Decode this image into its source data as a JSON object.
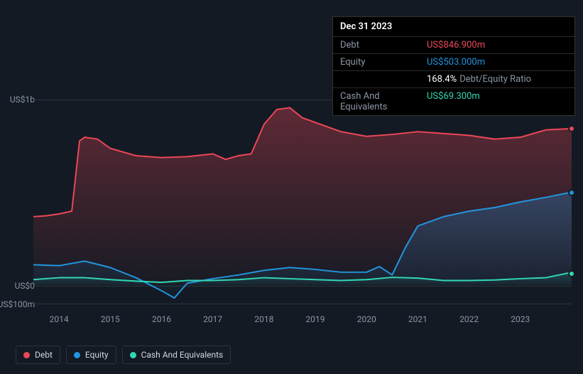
{
  "chart": {
    "type": "area",
    "background_color": "#131a23",
    "grid_color": "#2a3440",
    "axis_label_color": "#8b97a6",
    "axis_fontsize": 12,
    "x_domain": [
      2013.5,
      2024.0
    ],
    "y_domain": [
      -100,
      1000
    ],
    "y_ticks": [
      {
        "v": 1000,
        "label": "US$1b"
      },
      {
        "v": 0,
        "label": "US$0"
      },
      {
        "v": -100,
        "label": "-US$100m"
      }
    ],
    "x_ticks": [
      2014,
      2015,
      2016,
      2017,
      2018,
      2019,
      2020,
      2021,
      2022,
      2023
    ],
    "series": [
      {
        "key": "debt",
        "label": "Debt",
        "color": "#eb4758",
        "fill_top": "rgba(235,71,88,0.35)",
        "fill_bottom": "rgba(235,71,88,0.02)",
        "x": [
          2013.5,
          2013.75,
          2014.0,
          2014.25,
          2014.4,
          2014.5,
          2014.75,
          2015.0,
          2015.5,
          2016.0,
          2016.5,
          2017.0,
          2017.25,
          2017.5,
          2017.75,
          2018.0,
          2018.25,
          2018.5,
          2018.75,
          2019.0,
          2019.5,
          2020.0,
          2020.5,
          2021.0,
          2021.5,
          2022.0,
          2022.5,
          2023.0,
          2023.5,
          2024.0
        ],
        "y": [
          370,
          375,
          385,
          400,
          780,
          800,
          790,
          740,
          700,
          690,
          695,
          710,
          680,
          700,
          710,
          870,
          950,
          960,
          905,
          880,
          830,
          805,
          815,
          830,
          820,
          810,
          790,
          800,
          840,
          846.9
        ]
      },
      {
        "key": "equity",
        "label": "Equity",
        "color": "#2394df",
        "fill_top": "rgba(35,148,223,0.30)",
        "fill_bottom": "rgba(35,148,223,0.02)",
        "x": [
          2013.5,
          2014.0,
          2014.5,
          2015.0,
          2015.5,
          2016.0,
          2016.25,
          2016.5,
          2017.0,
          2017.5,
          2018.0,
          2018.5,
          2019.0,
          2019.5,
          2020.0,
          2020.25,
          2020.5,
          2020.75,
          2021.0,
          2021.5,
          2022.0,
          2022.5,
          2023.0,
          2023.5,
          2024.0
        ],
        "y": [
          110,
          105,
          130,
          95,
          40,
          -30,
          -70,
          10,
          35,
          55,
          80,
          95,
          85,
          70,
          70,
          100,
          55,
          200,
          320,
          370,
          400,
          420,
          450,
          475,
          503
        ]
      },
      {
        "key": "cash",
        "label": "Cash And Equivalents",
        "color": "#32d7b4",
        "fill_top": "rgba(50,215,180,0.18)",
        "fill_bottom": "rgba(50,215,180,0.01)",
        "x": [
          2013.5,
          2014.0,
          2014.5,
          2015.0,
          2015.5,
          2016.0,
          2016.5,
          2017.0,
          2017.5,
          2018.0,
          2018.5,
          2019.0,
          2019.5,
          2020.0,
          2020.5,
          2021.0,
          2021.5,
          2022.0,
          2022.5,
          2023.0,
          2023.5,
          2024.0
        ],
        "y": [
          30,
          40,
          40,
          30,
          22,
          15,
          25,
          25,
          30,
          40,
          35,
          30,
          25,
          30,
          42,
          38,
          25,
          25,
          28,
          35,
          40,
          69.3
        ]
      }
    ]
  },
  "tooltip": {
    "date": "Dec 31 2023",
    "rows": [
      {
        "label": "Debt",
        "value": "US$846.900m",
        "color": "#eb4758"
      },
      {
        "label": "Equity",
        "value": "US$503.000m",
        "color": "#2394df"
      },
      {
        "label": "",
        "value": "168.4%",
        "color": "#ffffff",
        "extra": "Debt/Equity Ratio"
      },
      {
        "label": "Cash And Equivalents",
        "value": "US$69.300m",
        "color": "#32d7b4"
      }
    ]
  },
  "legend": [
    {
      "label": "Debt",
      "color": "#eb4758"
    },
    {
      "label": "Equity",
      "color": "#2394df"
    },
    {
      "label": "Cash And Equivalents",
      "color": "#32d7b4"
    }
  ]
}
